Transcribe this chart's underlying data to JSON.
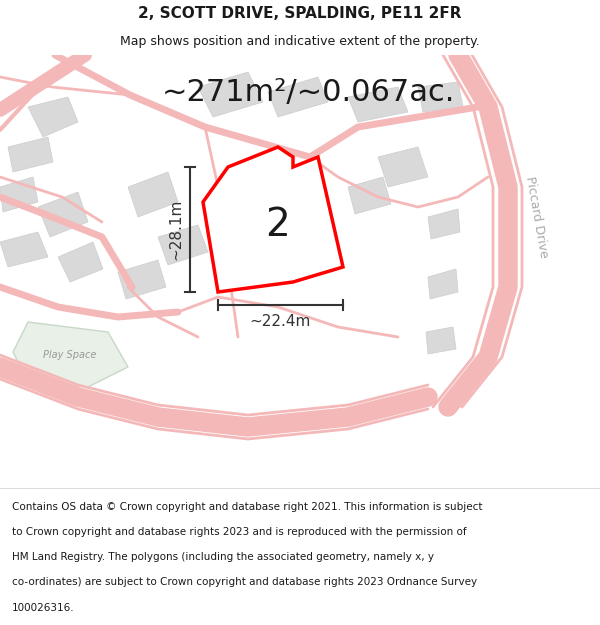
{
  "title": "2, SCOTT DRIVE, SPALDING, PE11 2FR",
  "subtitle": "Map shows position and indicative extent of the property.",
  "area_text": "~271m²/~0.067ac.",
  "label_number": "2",
  "dim_width": "~22.4m",
  "dim_height": "~28.1m",
  "road_label": "Piccard Drive",
  "play_space_label": "Play Space",
  "footer_lines": [
    "Contains OS data © Crown copyright and database right 2021. This information is subject",
    "to Crown copyright and database rights 2023 and is reproduced with the permission of",
    "HM Land Registry. The polygons (including the associated geometry, namely x, y",
    "co-ordinates) are subject to Crown copyright and database rights 2023 Ordnance Survey",
    "100026316."
  ],
  "bg_color": "#ffffff",
  "map_bg": "#f5f0f0",
  "road_color": "#f5b8b8",
  "highlight_color": "#ff0000",
  "building_color": "#d9d9d9",
  "building_edge": "#cccccc",
  "green_color": "#e8f0e8",
  "road_label_color": "#aaaaaa",
  "text_color": "#1a1a1a",
  "dim_color": "#333333",
  "footer_color": "#1a1a1a",
  "map_border_color": "#cccccc",
  "title_fontsize": 11,
  "subtitle_fontsize": 9,
  "area_fontsize": 22,
  "label_fontsize": 28,
  "dim_fontsize": 11,
  "footer_fontsize": 7.5
}
